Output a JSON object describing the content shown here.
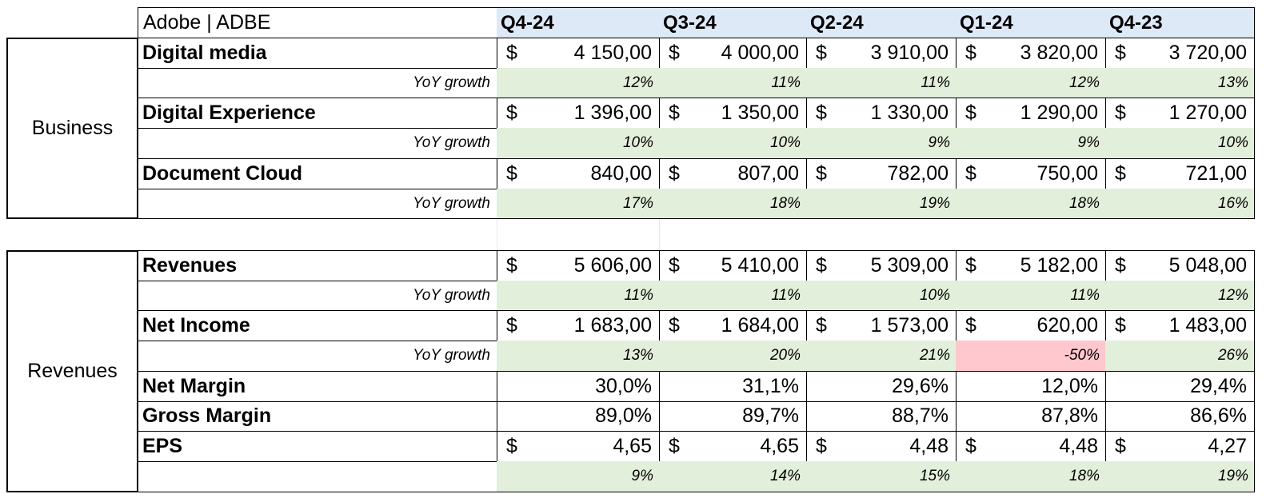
{
  "title": "Adobe | ADBE",
  "quarters": [
    "Q4-24",
    "Q3-24",
    "Q2-24",
    "Q1-24",
    "Q4-23"
  ],
  "currency_symbol": "$",
  "growth_label": "YoY growth",
  "colors": {
    "header_fill": "#dde9f6",
    "growth_fill": "#e2efda",
    "negative_fill": "#ffc7ce"
  },
  "sections": [
    {
      "label": "Business",
      "rows": [
        {
          "label": "Digital media",
          "kind": "money",
          "values": [
            "4 150,00",
            "4 000,00",
            "3 910,00",
            "3 820,00",
            "3 720,00"
          ]
        },
        {
          "label": "YoY growth",
          "kind": "growth",
          "values": [
            "12%",
            "11%",
            "11%",
            "12%",
            "13%"
          ]
        },
        {
          "label": "Digital Experience",
          "kind": "money",
          "values": [
            "1 396,00",
            "1 350,00",
            "1 330,00",
            "1 290,00",
            "1 270,00"
          ]
        },
        {
          "label": "YoY growth",
          "kind": "growth",
          "values": [
            "10%",
            "10%",
            "9%",
            "9%",
            "10%"
          ]
        },
        {
          "label": "Document Cloud",
          "kind": "money",
          "values": [
            "840,00",
            "807,00",
            "782,00",
            "750,00",
            "721,00"
          ]
        },
        {
          "label": "YoY growth",
          "kind": "growth",
          "values": [
            "17%",
            "18%",
            "19%",
            "18%",
            "16%"
          ]
        }
      ]
    },
    {
      "label": "Revenues",
      "rows": [
        {
          "label": "Revenues",
          "kind": "money",
          "values": [
            "5 606,00",
            "5 410,00",
            "5 309,00",
            "5 182,00",
            "5 048,00"
          ]
        },
        {
          "label": "YoY growth",
          "kind": "growth",
          "values": [
            "11%",
            "11%",
            "10%",
            "11%",
            "12%"
          ]
        },
        {
          "label": "Net Income",
          "kind": "money",
          "values": [
            "1 683,00",
            "1 684,00",
            "1 573,00",
            "620,00",
            "1 483,00"
          ]
        },
        {
          "label": "YoY growth",
          "kind": "growth",
          "values": [
            "13%",
            "20%",
            "21%",
            "-50%",
            "26%"
          ],
          "negative": [
            false,
            false,
            false,
            true,
            false
          ]
        },
        {
          "label": "Net Margin",
          "kind": "pct",
          "values": [
            "30,0%",
            "31,1%",
            "29,6%",
            "12,0%",
            "29,4%"
          ]
        },
        {
          "label": "Gross Margin",
          "kind": "pct",
          "values": [
            "89,0%",
            "89,7%",
            "88,7%",
            "87,8%",
            "86,6%"
          ]
        },
        {
          "label": "EPS",
          "kind": "money",
          "values": [
            "4,65",
            "4,65",
            "4,48",
            "4,48",
            "4,27"
          ]
        },
        {
          "label": "",
          "kind": "growth",
          "values": [
            "9%",
            "14%",
            "15%",
            "18%",
            "19%"
          ]
        }
      ]
    }
  ]
}
